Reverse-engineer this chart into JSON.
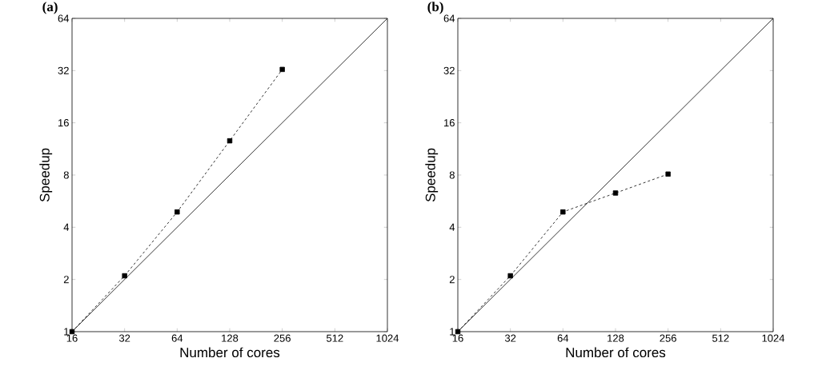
{
  "chart_data": [
    {
      "type": "line",
      "title": "(a)",
      "xlabel": "Number of cores",
      "ylabel": "Speedup",
      "log": "xy",
      "xlim": [
        16,
        1024
      ],
      "ylim": [
        1,
        64
      ],
      "xticks": [
        16,
        32,
        64,
        128,
        256,
        512,
        1024
      ],
      "yticks": [
        1,
        2,
        4,
        8,
        16,
        32,
        64
      ],
      "series": [
        {
          "color": "#000000",
          "x": [
            16,
            1024
          ],
          "values": [
            1,
            64
          ],
          "line_style": "solid"
        },
        {
          "color": "#000000",
          "x": [
            16,
            32,
            64,
            128,
            256
          ],
          "values": [
            1,
            2.1,
            4.9,
            12.6,
            32.5
          ],
          "line_style": "dashed",
          "marker": "square"
        }
      ]
    },
    {
      "type": "line",
      "title": "(b)",
      "xlabel": "Number of cores",
      "ylabel": "Speedup",
      "log": "xy",
      "xlim": [
        16,
        1024
      ],
      "ylim": [
        1,
        64
      ],
      "xticks": [
        16,
        32,
        64,
        128,
        256,
        512,
        1024
      ],
      "yticks": [
        1,
        2,
        4,
        8,
        16,
        32,
        64
      ],
      "series": [
        {
          "color": "#000000",
          "x": [
            16,
            1024
          ],
          "values": [
            1,
            64
          ],
          "line_style": "solid"
        },
        {
          "color": "#000000",
          "x": [
            16,
            32,
            64,
            128,
            256
          ],
          "values": [
            1,
            2.1,
            4.9,
            6.3,
            8.1
          ],
          "line_style": "dashed",
          "marker": "square"
        }
      ]
    }
  ]
}
